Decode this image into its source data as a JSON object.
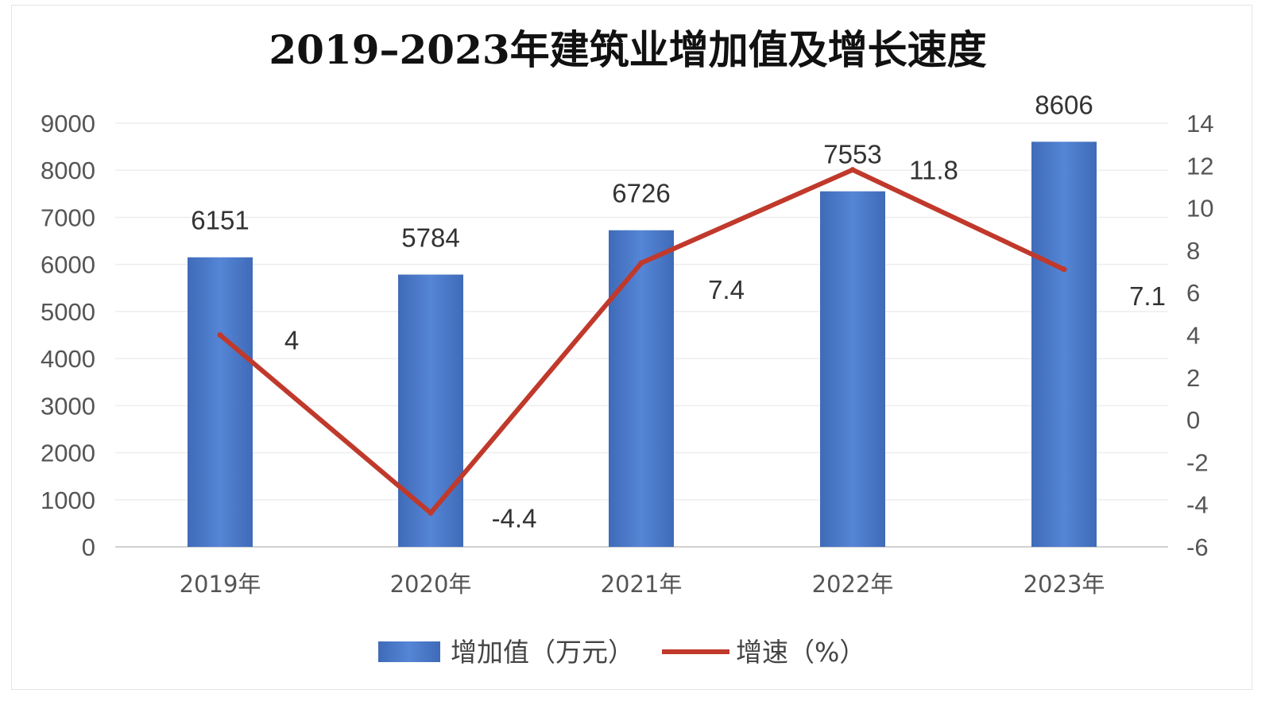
{
  "chart_data": {
    "type": "bar+line",
    "title": "2019–2023年建筑业增加值及增长速度",
    "categories": [
      "2019年",
      "2020年",
      "2021年",
      "2022年",
      "2023年"
    ],
    "series": [
      {
        "name": "增加值（万元）",
        "type": "bar",
        "axis": "left",
        "values": [
          6151,
          5784,
          6726,
          7553,
          8606
        ],
        "color": "#4472c4"
      },
      {
        "name": "增速（%）",
        "type": "line",
        "axis": "right",
        "values": [
          4,
          -4.4,
          7.4,
          11.8,
          7.1
        ],
        "color": "#c0392b"
      }
    ],
    "y_left": {
      "min": 0,
      "max": 9000,
      "step": 1000,
      "ticks": [
        "0",
        "1000",
        "2000",
        "3000",
        "4000",
        "5000",
        "6000",
        "7000",
        "8000",
        "9000"
      ]
    },
    "y_right": {
      "min": -6,
      "max": 14,
      "step": 2,
      "ticks": [
        "-6",
        "-4",
        "-2",
        "0",
        "2",
        "4",
        "6",
        "8",
        "10",
        "12",
        "14"
      ]
    },
    "grid": true,
    "legend_position": "bottom"
  }
}
